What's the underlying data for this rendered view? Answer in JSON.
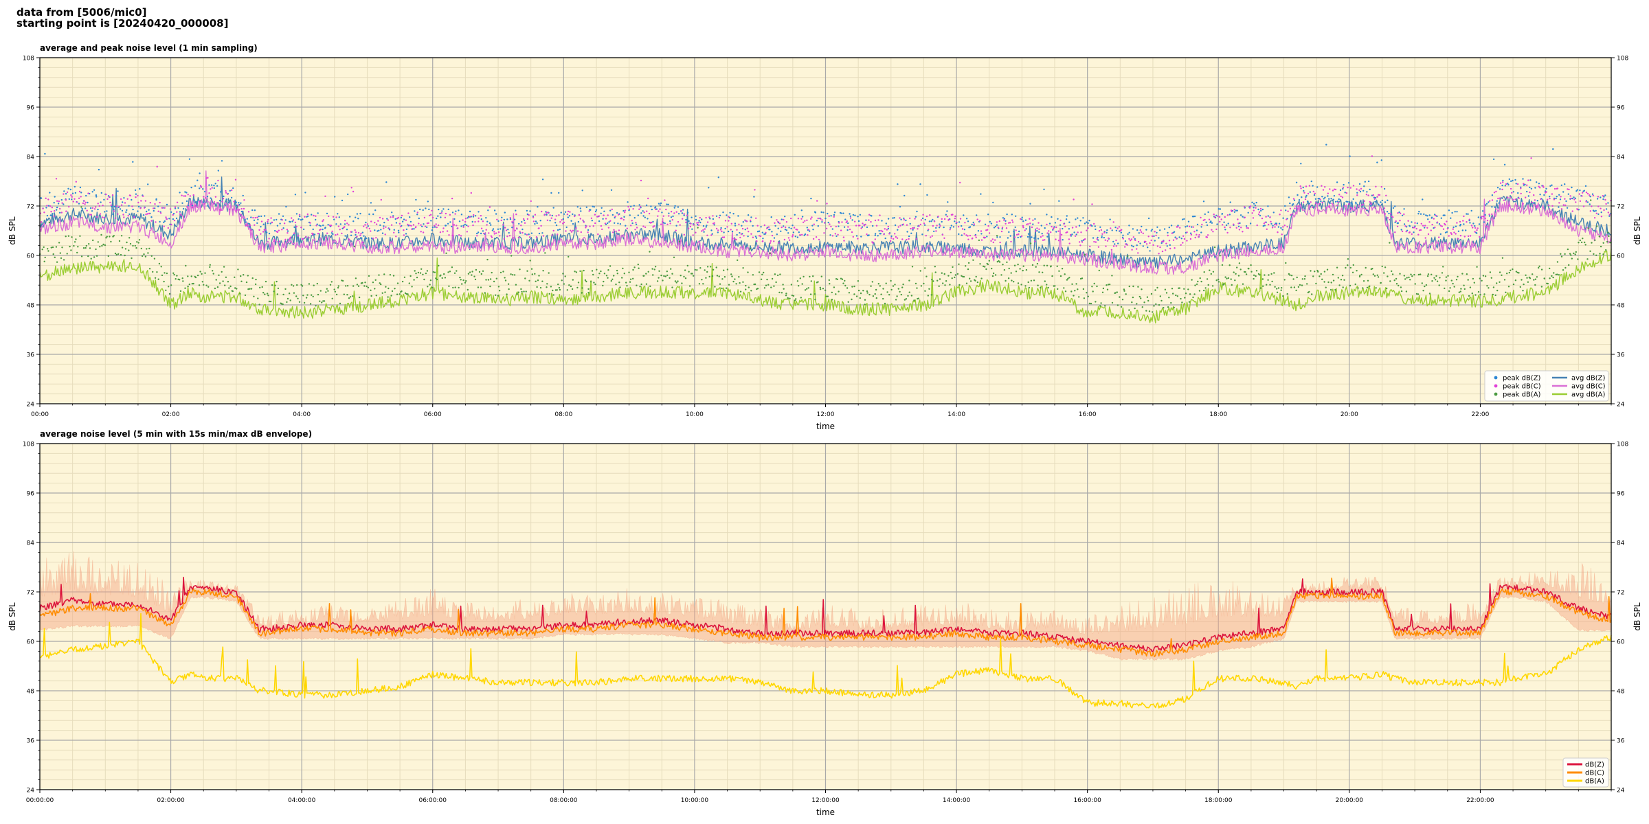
{
  "header": {
    "line1": "data from [5006/mic0]",
    "line2": "starting point is [20240420_000008]"
  },
  "colors": {
    "plot_bg": "#fdf5d8",
    "grid_major": "#a9a9a9",
    "grid_minor": "#e6dcbc",
    "peakZ": "#2b86d4",
    "peakC": "#e040d8",
    "peakA": "#4a9a40",
    "avgZ": "#4682b4",
    "avgC": "#da70d6",
    "avgA": "#9acd32",
    "dBZ": "#dc143c",
    "dBC": "#ff8c00",
    "dBA": "#ffd700",
    "envelope": "#f4a582"
  },
  "chart_data": [
    {
      "type": "line",
      "title": "average and peak noise level (1 min sampling)",
      "xlabel": "time",
      "ylabel": "dB SPL",
      "ylabel_right": "dB SPL",
      "xlim": [
        0,
        24
      ],
      "ylim": [
        24,
        108
      ],
      "yticks": [
        "24",
        "36",
        "48",
        "60",
        "72",
        "84",
        "96",
        "108"
      ],
      "xtick_labels": [
        "00:00",
        "02:00",
        "04:00",
        "06:00",
        "08:00",
        "10:00",
        "12:00",
        "14:00",
        "16:00",
        "18:00",
        "20:00",
        "22:00"
      ],
      "grid": true,
      "legend_position": "bottom-right",
      "legend": [
        {
          "label": "peak dB(Z)",
          "kind": "marker",
          "color_key": "peakZ"
        },
        {
          "label": "peak dB(C)",
          "kind": "marker",
          "color_key": "peakC"
        },
        {
          "label": "peak dB(A)",
          "kind": "marker",
          "color_key": "peakA"
        },
        {
          "label": "avg dB(Z)",
          "kind": "line",
          "color_key": "avgZ"
        },
        {
          "label": "avg dB(C)",
          "kind": "line",
          "color_key": "avgC"
        },
        {
          "label": "avg dB(A)",
          "kind": "line",
          "color_key": "avgA"
        }
      ],
      "x_hours": [
        0,
        0.5,
        1,
        1.5,
        2,
        2.3,
        2.5,
        3,
        3.35,
        3.5,
        4,
        4.5,
        5,
        5.5,
        6,
        6.5,
        7,
        7.5,
        8,
        8.5,
        9,
        9.5,
        10,
        10.5,
        11,
        11.5,
        12,
        12.5,
        13,
        13.5,
        14,
        14.5,
        15,
        15.5,
        16,
        16.5,
        17,
        17.5,
        18,
        18.5,
        19,
        19.2,
        19.5,
        20,
        20.5,
        20.7,
        21,
        21.5,
        22,
        22.3,
        22.5,
        23,
        23.5,
        24
      ],
      "series": [
        {
          "name": "avg dB(Z)",
          "style": "line",
          "color_key": "avgZ",
          "values": [
            68,
            70,
            69,
            69,
            65,
            73,
            73,
            72,
            63,
            63,
            64,
            64,
            63,
            63,
            64,
            63,
            63,
            63,
            64,
            64,
            65,
            65,
            63,
            63,
            62,
            62,
            62,
            62,
            62,
            62,
            62,
            61,
            61,
            61,
            60,
            59,
            58,
            59,
            61,
            62,
            63,
            72,
            72,
            72,
            72,
            63,
            63,
            63,
            63,
            73,
            73,
            72,
            68,
            66
          ]
        },
        {
          "name": "avg dB(C)",
          "style": "line",
          "color_key": "avgC",
          "values": [
            66,
            68,
            67,
            67,
            63,
            72,
            72,
            71,
            62,
            62,
            63,
            63,
            62,
            62,
            62,
            62,
            62,
            62,
            63,
            63,
            64,
            63,
            62,
            61,
            61,
            60,
            61,
            60,
            60,
            61,
            61,
            60,
            60,
            60,
            59,
            58,
            57,
            57,
            60,
            61,
            62,
            71,
            71,
            71,
            71,
            62,
            62,
            62,
            62,
            72,
            72,
            71,
            66,
            64
          ]
        },
        {
          "name": "avg dB(A)",
          "style": "line",
          "color_key": "avgA",
          "values": [
            55,
            57,
            57,
            58,
            48,
            51,
            50,
            50,
            47,
            47,
            46,
            47,
            48,
            49,
            51,
            50,
            49,
            50,
            49,
            50,
            51,
            51,
            51,
            51,
            49,
            48,
            48,
            47,
            47,
            48,
            51,
            53,
            51,
            51,
            46,
            46,
            45,
            47,
            52,
            51,
            49,
            48,
            50,
            51,
            51,
            50,
            49,
            49,
            49,
            49,
            50,
            51,
            57,
            60
          ]
        },
        {
          "name": "peak dB(Z)",
          "style": "scatter",
          "color_key": "peakZ",
          "values": [
            72,
            74,
            73,
            73,
            70,
            75,
            75,
            74,
            67,
            67,
            68,
            68,
            67,
            68,
            69,
            68,
            68,
            68,
            69,
            69,
            70,
            70,
            68,
            68,
            67,
            67,
            68,
            67,
            67,
            68,
            68,
            67,
            67,
            67,
            66,
            65,
            64,
            66,
            69,
            70,
            69,
            75,
            75,
            75,
            75,
            69,
            68,
            68,
            68,
            76,
            76,
            75,
            74,
            72
          ]
        },
        {
          "name": "peak dB(C)",
          "style": "scatter",
          "color_key": "peakC",
          "values": [
            71,
            73,
            72,
            72,
            69,
            74,
            74,
            73,
            66,
            66,
            67,
            67,
            66,
            67,
            68,
            67,
            67,
            67,
            68,
            68,
            69,
            69,
            67,
            67,
            66,
            66,
            67,
            66,
            66,
            67,
            67,
            66,
            66,
            66,
            65,
            64,
            63,
            65,
            68,
            69,
            68,
            74,
            74,
            74,
            74,
            68,
            67,
            67,
            67,
            75,
            75,
            74,
            73,
            71
          ]
        },
        {
          "name": "peak dB(A)",
          "style": "scatter",
          "color_key": "peakA",
          "values": [
            60,
            62,
            62,
            62,
            53,
            55,
            55,
            54,
            51,
            51,
            50,
            51,
            52,
            53,
            55,
            54,
            53,
            54,
            53,
            54,
            55,
            55,
            55,
            55,
            53,
            52,
            52,
            51,
            51,
            52,
            55,
            57,
            55,
            55,
            51,
            50,
            49,
            51,
            56,
            55,
            53,
            52,
            54,
            55,
            55,
            54,
            53,
            53,
            53,
            53,
            54,
            55,
            61,
            64
          ]
        }
      ]
    },
    {
      "type": "line",
      "title": "average noise level (5 min with 15s min/max dB envelope)",
      "xlabel": "time",
      "ylabel": "dB SPL",
      "ylabel_right": "dB SPL",
      "xlim": [
        0,
        24
      ],
      "ylim": [
        24,
        108
      ],
      "yticks": [
        "24",
        "36",
        "48",
        "60",
        "72",
        "84",
        "96",
        "108"
      ],
      "xtick_labels": [
        "00:00:00",
        "02:00:00",
        "04:00:00",
        "06:00:00",
        "08:00:00",
        "10:00:00",
        "12:00:00",
        "14:00:00",
        "16:00:00",
        "18:00:00",
        "20:00:00",
        "22:00:00"
      ],
      "grid": true,
      "legend_position": "bottom-right",
      "legend": [
        {
          "label": "dB(Z)",
          "kind": "line",
          "color_key": "dBZ"
        },
        {
          "label": "dB(C)",
          "kind": "line",
          "color_key": "dBC"
        },
        {
          "label": "dB(A)",
          "kind": "line",
          "color_key": "dBA"
        }
      ],
      "x_hours": [
        0,
        0.5,
        1,
        1.5,
        2,
        2.3,
        2.5,
        3,
        3.35,
        3.5,
        4,
        4.5,
        5,
        5.5,
        6,
        6.5,
        7,
        7.5,
        8,
        8.5,
        9,
        9.5,
        10,
        10.5,
        11,
        11.5,
        12,
        12.5,
        13,
        13.5,
        14,
        14.5,
        15,
        15.5,
        16,
        16.5,
        17,
        17.5,
        18,
        18.5,
        19,
        19.2,
        19.5,
        20,
        20.5,
        20.7,
        21,
        21.5,
        22,
        22.3,
        22.5,
        23,
        23.5,
        24
      ],
      "envelope_max": [
        80,
        82,
        80,
        79,
        74,
        75,
        75,
        74,
        67,
        67,
        68,
        70,
        69,
        70,
        73,
        70,
        70,
        71,
        72,
        72,
        73,
        72,
        72,
        70,
        68,
        67,
        69,
        68,
        68,
        69,
        70,
        68,
        67,
        68,
        66,
        70,
        72,
        74,
        76,
        74,
        72,
        75,
        75,
        76,
        76,
        70,
        68,
        68,
        70,
        76,
        76,
        78,
        80,
        76
      ],
      "envelope_min": [
        63,
        64,
        64,
        64,
        61,
        71,
        71,
        70,
        61,
        61,
        61,
        61,
        61,
        61,
        61,
        61,
        61,
        61,
        62,
        62,
        62,
        62,
        61,
        60,
        60,
        59,
        59,
        59,
        59,
        59,
        59,
        59,
        59,
        59,
        58,
        56,
        56,
        56,
        58,
        59,
        61,
        70,
        70,
        70,
        70,
        61,
        61,
        61,
        61,
        71,
        71,
        70,
        63,
        63
      ],
      "series": [
        {
          "name": "dB(Z)",
          "color_key": "dBZ",
          "values": [
            68,
            70,
            69,
            69,
            65,
            73,
            73,
            72,
            63,
            63,
            64,
            64,
            63,
            63,
            64,
            63,
            63,
            63,
            64,
            64,
            65,
            65,
            64,
            63,
            62,
            62,
            62,
            62,
            62,
            62,
            63,
            62,
            62,
            61,
            60,
            59,
            58,
            59,
            61,
            62,
            63,
            72,
            72,
            72,
            72,
            63,
            63,
            63,
            63,
            73,
            73,
            72,
            68,
            66
          ]
        },
        {
          "name": "dB(C)",
          "color_key": "dBC",
          "values": [
            66,
            68,
            68,
            68,
            64,
            72,
            72,
            71,
            62,
            62,
            63,
            63,
            62,
            62,
            63,
            62,
            62,
            62,
            63,
            63,
            64,
            64,
            63,
            62,
            61,
            61,
            61,
            61,
            61,
            61,
            62,
            61,
            61,
            60,
            59,
            58,
            57,
            58,
            60,
            61,
            62,
            71,
            71,
            71,
            71,
            62,
            62,
            62,
            62,
            72,
            72,
            71,
            67,
            65
          ]
        },
        {
          "name": "dB(A)",
          "color_key": "dBA",
          "values": [
            56,
            58,
            59,
            60,
            50,
            52,
            51,
            51,
            48,
            48,
            47,
            47,
            48,
            49,
            52,
            51,
            50,
            50,
            50,
            50,
            51,
            51,
            51,
            51,
            50,
            48,
            48,
            47,
            47,
            48,
            52,
            53,
            51,
            51,
            45,
            45,
            44,
            46,
            51,
            51,
            50,
            49,
            51,
            51,
            52,
            51,
            50,
            50,
            50,
            50,
            51,
            52,
            58,
            61
          ]
        }
      ]
    }
  ]
}
